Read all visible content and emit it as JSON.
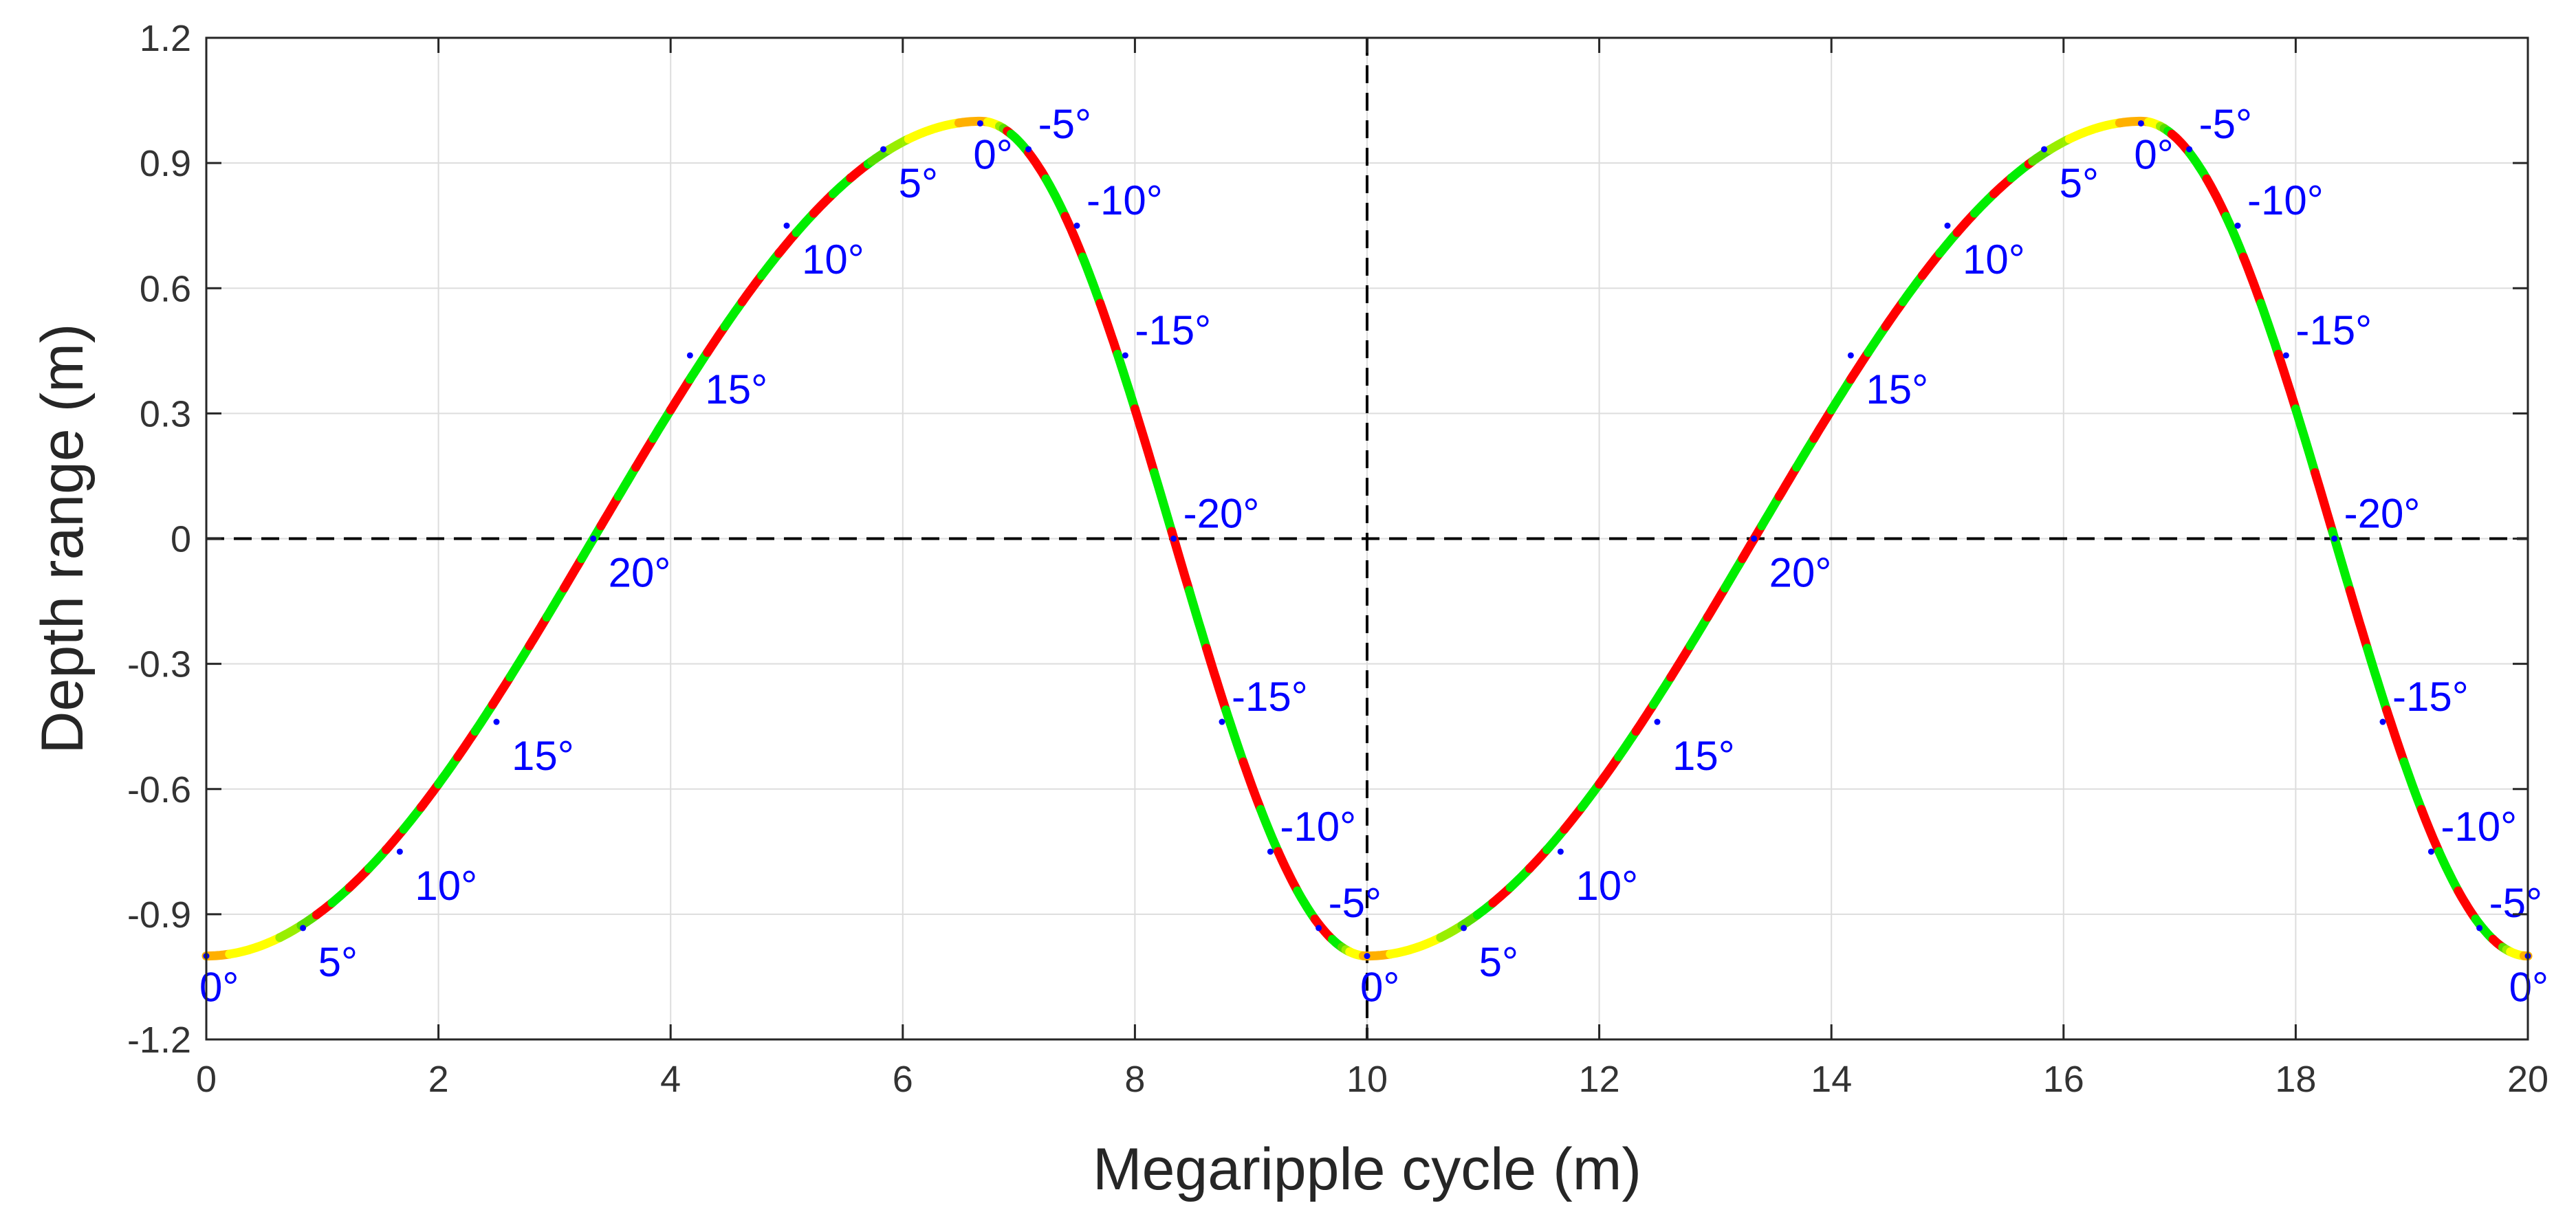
{
  "chart_data": {
    "type": "line",
    "title": "",
    "xlabel": "Megaripple cycle (m)",
    "ylabel": "Depth range (m)",
    "xlim": [
      0,
      20
    ],
    "ylim": [
      -1.2,
      1.2
    ],
    "x_ticks": [
      0,
      2,
      4,
      6,
      8,
      10,
      12,
      14,
      16,
      18,
      20
    ],
    "y_ticks": [
      1.2,
      0.9,
      0.6,
      0.3,
      0,
      -0.3,
      -0.6,
      -0.9,
      -1.2
    ],
    "x_tick_labels": [
      "0",
      "2",
      "4",
      "6",
      "8",
      "10",
      "12",
      "14",
      "16",
      "18",
      "20"
    ],
    "y_tick_labels": [
      "1.2",
      "0.9",
      "0.6",
      "0.3",
      "0",
      "-0.3",
      "-0.6",
      "-0.9",
      "-1.2"
    ],
    "grid": true,
    "reference_lines": {
      "horizontal_y": 0,
      "vertical_x": 10
    },
    "curve": {
      "description_of_shape": "asymmetric ripple profile, period 10 m, trough at x=0, crest at x=6.67",
      "period": 10,
      "trough_x": 0,
      "crest_x": 6.67,
      "trough_y": -1,
      "crest_y": 1
    },
    "slope_color_bands": [
      {
        "max_abs_angle": 5,
        "color": "#ffb000"
      },
      {
        "max_abs_angle": 12.5,
        "color": "#ffff00"
      },
      {
        "max_abs_angle": 17.5,
        "color": "#99ee00"
      },
      {
        "max_abs_angle": 30,
        "color": "#55dd00"
      }
    ],
    "steep_alternating_colors": [
      "#ff0000",
      "#00ee00"
    ],
    "marker_color": "#0000ff",
    "angle_labels": [
      {
        "x": 0,
        "y": -1.0,
        "text": "0°"
      },
      {
        "x": 0.833,
        "y": -0.933,
        "text": "5°"
      },
      {
        "x": 1.667,
        "y": -0.75,
        "text": "10°"
      },
      {
        "x": 2.5,
        "y": -0.439,
        "text": "15°"
      },
      {
        "x": 3.333,
        "y": 0.0,
        "text": "20°"
      },
      {
        "x": 4.167,
        "y": 0.439,
        "text": "15°"
      },
      {
        "x": 5.0,
        "y": 0.75,
        "text": "10°"
      },
      {
        "x": 5.833,
        "y": 0.933,
        "text": "5°"
      },
      {
        "x": 6.667,
        "y": 0.995,
        "text": "0°"
      },
      {
        "x": 7.083,
        "y": 0.933,
        "text": "-5°"
      },
      {
        "x": 7.5,
        "y": 0.75,
        "text": "-10°"
      },
      {
        "x": 7.917,
        "y": 0.439,
        "text": "-15°"
      },
      {
        "x": 8.333,
        "y": 0.0,
        "text": "-20°"
      },
      {
        "x": 8.75,
        "y": -0.439,
        "text": "-15°"
      },
      {
        "x": 9.167,
        "y": -0.75,
        "text": "-10°"
      },
      {
        "x": 9.583,
        "y": -0.933,
        "text": "-5°"
      },
      {
        "x": 10.0,
        "y": -1.0,
        "text": "0°"
      },
      {
        "x": 10.833,
        "y": -0.933,
        "text": "5°"
      },
      {
        "x": 11.667,
        "y": -0.75,
        "text": "10°"
      },
      {
        "x": 12.5,
        "y": -0.439,
        "text": "15°"
      },
      {
        "x": 13.333,
        "y": 0.0,
        "text": "20°"
      },
      {
        "x": 14.167,
        "y": 0.439,
        "text": "15°"
      },
      {
        "x": 15.0,
        "y": 0.75,
        "text": "10°"
      },
      {
        "x": 15.833,
        "y": 0.933,
        "text": "5°"
      },
      {
        "x": 16.667,
        "y": 0.995,
        "text": "0°"
      },
      {
        "x": 17.083,
        "y": 0.933,
        "text": "-5°"
      },
      {
        "x": 17.5,
        "y": 0.75,
        "text": "-10°"
      },
      {
        "x": 17.917,
        "y": 0.439,
        "text": "-15°"
      },
      {
        "x": 18.333,
        "y": 0.0,
        "text": "-20°"
      },
      {
        "x": 18.75,
        "y": -0.439,
        "text": "-15°"
      },
      {
        "x": 19.167,
        "y": -0.75,
        "text": "-10°"
      },
      {
        "x": 19.583,
        "y": -0.933,
        "text": "-5°"
      },
      {
        "x": 20.0,
        "y": -1.0,
        "text": "0°"
      }
    ]
  }
}
